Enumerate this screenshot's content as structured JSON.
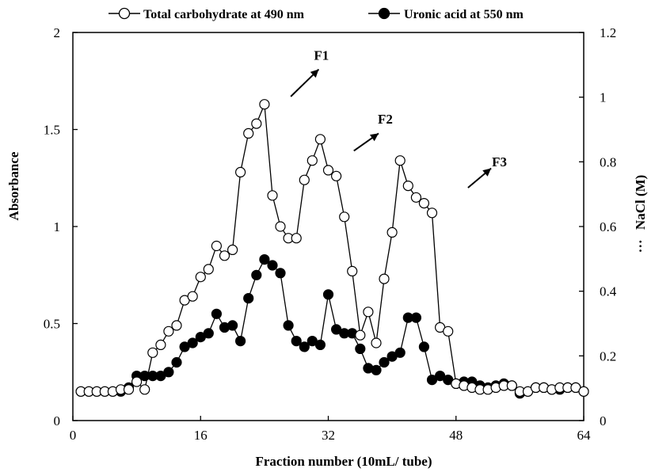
{
  "chart_data": {
    "type": "line",
    "title": "",
    "xlabel": "Fraction number (10mL/ tube)",
    "ylabel": "Absorbance",
    "y2label": "NaCl (M)",
    "y2label_prefix": "···",
    "xlim": [
      0,
      64
    ],
    "ylim": [
      0,
      2
    ],
    "y2lim": [
      0,
      1.2
    ],
    "xticks": [
      0,
      16,
      32,
      48,
      64
    ],
    "xtick_labels": [
      "0",
      "16",
      "32",
      "48",
      "64"
    ],
    "yticks": [
      0,
      0.5,
      1,
      1.5,
      2
    ],
    "ytick_labels": [
      "0",
      "0.5",
      "1",
      "1.5",
      "2"
    ],
    "y2ticks": [
      0,
      0.2,
      0.4,
      0.6,
      0.8,
      1,
      1.2
    ],
    "y2tick_labels": [
      "0",
      "0.2",
      "0.4",
      "0.6",
      "0.8",
      "1",
      "1.2"
    ],
    "grid": false,
    "legend_position": "top",
    "series": [
      {
        "name": "Total carbohydrate at 490 nm",
        "marker": "open-circle",
        "color": "#000000",
        "x": [
          1,
          2,
          3,
          4,
          5,
          6,
          7,
          8,
          9,
          10,
          11,
          12,
          13,
          14,
          15,
          16,
          17,
          18,
          19,
          20,
          21,
          22,
          23,
          24,
          25,
          26,
          27,
          28,
          29,
          30,
          31,
          32,
          33,
          34,
          35,
          36,
          37,
          38,
          39,
          40,
          41,
          42,
          43,
          44,
          45,
          46,
          47,
          48,
          49,
          50,
          51,
          52,
          53,
          54,
          55,
          56,
          57,
          58,
          59,
          60,
          61,
          62,
          63,
          64
        ],
        "y": [
          0.15,
          0.15,
          0.15,
          0.15,
          0.15,
          0.16,
          0.16,
          0.2,
          0.16,
          0.35,
          0.39,
          0.46,
          0.49,
          0.62,
          0.64,
          0.74,
          0.78,
          0.9,
          0.85,
          0.88,
          1.28,
          1.48,
          1.53,
          1.63,
          1.16,
          1.0,
          0.94,
          0.94,
          1.24,
          1.34,
          1.45,
          1.29,
          1.26,
          1.05,
          0.77,
          0.44,
          0.56,
          0.4,
          0.73,
          0.97,
          1.34,
          1.21,
          1.15,
          1.12,
          1.07,
          0.48,
          0.46,
          0.19,
          0.18,
          0.17,
          0.16,
          0.16,
          0.17,
          0.18,
          0.18,
          0.15,
          0.15,
          0.17,
          0.17,
          0.16,
          0.17,
          0.17,
          0.17,
          0.15
        ]
      },
      {
        "name": "Uronic acid at 550 nm",
        "marker": "filled-circle",
        "color": "#000000",
        "x": [
          1,
          2,
          3,
          4,
          5,
          6,
          7,
          8,
          9,
          10,
          11,
          12,
          13,
          14,
          15,
          16,
          17,
          18,
          19,
          20,
          21,
          22,
          23,
          24,
          25,
          26,
          27,
          28,
          29,
          30,
          31,
          32,
          33,
          34,
          35,
          36,
          37,
          38,
          39,
          40,
          41,
          42,
          43,
          44,
          45,
          46,
          47,
          48,
          49,
          50,
          51,
          52,
          53,
          54,
          55,
          56,
          57,
          58,
          59,
          60,
          61,
          62,
          63,
          64
        ],
        "y": [
          0.15,
          0.15,
          0.15,
          0.15,
          0.15,
          0.15,
          0.17,
          0.23,
          0.23,
          0.23,
          0.23,
          0.25,
          0.3,
          0.38,
          0.4,
          0.43,
          0.45,
          0.55,
          0.48,
          0.49,
          0.41,
          0.63,
          0.75,
          0.83,
          0.8,
          0.76,
          0.49,
          0.41,
          0.38,
          0.41,
          0.39,
          0.65,
          0.47,
          0.45,
          0.45,
          0.37,
          0.27,
          0.26,
          0.3,
          0.33,
          0.35,
          0.53,
          0.53,
          0.38,
          0.21,
          0.23,
          0.21,
          0.19,
          0.2,
          0.2,
          0.18,
          0.17,
          0.18,
          0.19,
          0.18,
          0.14,
          0.15,
          0.17,
          0.17,
          0.16,
          0.16,
          0.17,
          0.17,
          0.15
        ]
      }
    ],
    "annotations": [
      {
        "label": "F1",
        "x": 30.2,
        "y": 1.86,
        "arrow_from": [
          27.3,
          1.67
        ],
        "arrow_to": [
          30.8,
          1.81
        ]
      },
      {
        "label": "F2",
        "x": 38.2,
        "y": 1.53,
        "arrow_from": [
          35.2,
          1.39
        ],
        "arrow_to": [
          38.3,
          1.48
        ]
      },
      {
        "label": "F3",
        "x": 52.5,
        "y": 1.31,
        "arrow_from": [
          49.5,
          1.2
        ],
        "arrow_to": [
          52.4,
          1.3
        ]
      }
    ]
  }
}
